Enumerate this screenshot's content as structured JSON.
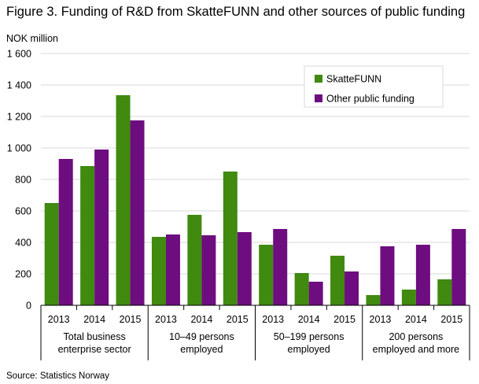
{
  "title": "Figure 3. Funding of R&D from SkatteFUNN and other sources of public funding",
  "source": "Source: Statistics Norway",
  "colors": {
    "SkatteFUNN": "#3f8a0f",
    "Other public funding": "#6e0d7f",
    "grid": "#d9d9d9",
    "axis": "#000000"
  },
  "chart_data": {
    "type": "bar",
    "ylabel": "NOK million",
    "ylim": [
      0,
      1600
    ],
    "yticks": [
      0,
      200,
      400,
      600,
      800,
      1000,
      1200,
      1400,
      1600
    ],
    "ytick_labels": [
      "0",
      "200",
      "400",
      "600",
      "800",
      "1 000",
      "1 200",
      "1 400",
      "1 600"
    ],
    "grid": true,
    "legend_position": "top-right",
    "categories": [
      "2013",
      "2014",
      "2015",
      "2013",
      "2014",
      "2015",
      "2013",
      "2014",
      "2015",
      "2013",
      "2014",
      "2015"
    ],
    "groups": [
      {
        "label": [
          "Total business",
          "enterprise sector"
        ]
      },
      {
        "label": [
          "10–49 persons",
          "employed"
        ]
      },
      {
        "label": [
          "50–199 persons",
          "employed"
        ]
      },
      {
        "label": [
          "200 persons",
          "employed  and more"
        ]
      }
    ],
    "series": [
      {
        "name": "SkatteFUNN",
        "values": [
          650,
          885,
          1335,
          435,
          575,
          850,
          385,
          205,
          315,
          65,
          100,
          165
        ]
      },
      {
        "name": "Other public funding",
        "values": [
          930,
          990,
          1175,
          450,
          445,
          465,
          485,
          150,
          215,
          375,
          385,
          485
        ]
      }
    ]
  }
}
